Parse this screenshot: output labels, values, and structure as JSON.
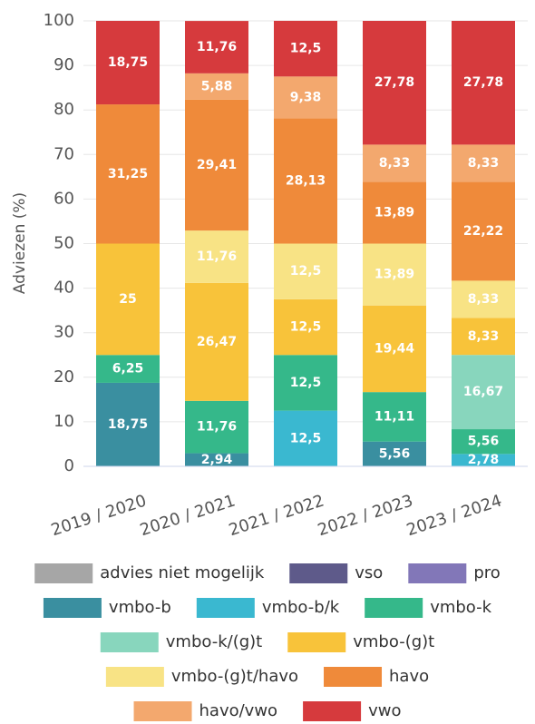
{
  "chart_data": {
    "type": "stacked-bar",
    "y_label": "Adviezen (%)",
    "categories": [
      "2019 / 2020",
      "2020 / 2021",
      "2021 / 2022",
      "2022 / 2023",
      "2023 / 2024"
    ],
    "ylim": [
      0,
      100
    ],
    "yticks": [
      0,
      10,
      20,
      30,
      40,
      50,
      60,
      70,
      80,
      90,
      100
    ],
    "series": [
      {
        "name": "advies niet mogelijk",
        "color": "#a6a6a6",
        "values": [
          0,
          0,
          0,
          0,
          0
        ]
      },
      {
        "name": "vso",
        "color": "#5e5a8a",
        "values": [
          0,
          0,
          0,
          0,
          0
        ]
      },
      {
        "name": "pro",
        "color": "#8277b8",
        "values": [
          0,
          0,
          0,
          0,
          0
        ]
      },
      {
        "name": "vmbo-b",
        "color": "#3a8fa0",
        "values": [
          18.75,
          2.94,
          0,
          5.56,
          0
        ],
        "value_labels": [
          "18,75",
          "2,94",
          null,
          "5,56",
          null
        ]
      },
      {
        "name": "vmbo-b/k",
        "color": "#3ab8d0",
        "values": [
          0,
          0,
          12.5,
          0,
          2.78
        ],
        "value_labels": [
          null,
          null,
          "12,5",
          null,
          "2,78"
        ]
      },
      {
        "name": "vmbo-k",
        "color": "#35b88a",
        "values": [
          6.25,
          11.76,
          12.5,
          11.11,
          5.56
        ],
        "value_labels": [
          "6,25",
          "11,76",
          "12,5",
          "11,11",
          "5,56"
        ]
      },
      {
        "name": "vmbo-k/(g)t",
        "color": "#88d6bd",
        "values": [
          0,
          0,
          0,
          0,
          16.67
        ],
        "value_labels": [
          null,
          null,
          null,
          null,
          "16,67"
        ]
      },
      {
        "name": "vmbo-(g)t",
        "color": "#f8c33a",
        "values": [
          25,
          26.47,
          12.5,
          19.44,
          8.33
        ],
        "value_labels": [
          "25",
          "26,47",
          "12,5",
          "19,44",
          "8,33"
        ]
      },
      {
        "name": "vmbo-(g)t/havo",
        "color": "#f8e385",
        "values": [
          0,
          11.76,
          12.5,
          13.89,
          8.33
        ],
        "value_labels": [
          null,
          "11,76",
          "12,5",
          "13,89",
          "8,33"
        ]
      },
      {
        "name": "havo",
        "color": "#ef8a3a",
        "values": [
          31.25,
          29.41,
          28.13,
          13.89,
          22.22
        ],
        "value_labels": [
          "31,25",
          "29,41",
          "28,13",
          "13,89",
          "22,22"
        ]
      },
      {
        "name": "havo/vwo",
        "color": "#f3a86e",
        "values": [
          0,
          5.88,
          9.38,
          8.33,
          8.33
        ],
        "value_labels": [
          null,
          "5,88",
          "9,38",
          "8,33",
          "8,33"
        ]
      },
      {
        "name": "vwo",
        "color": "#d63a3d",
        "values": [
          18.75,
          11.76,
          12.5,
          27.78,
          27.78
        ],
        "value_labels": [
          "18,75",
          "11,76",
          "12,5",
          "27,78",
          "27,78"
        ]
      }
    ]
  }
}
